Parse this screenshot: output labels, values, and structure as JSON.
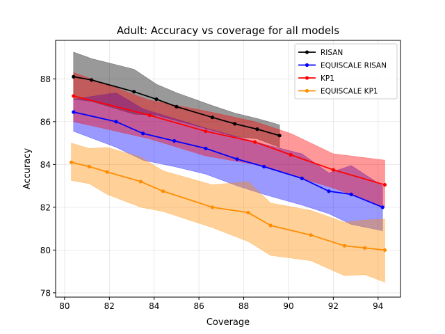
{
  "chart_data": {
    "type": "line",
    "title": "Adult: Accuracy vs coverage for all models",
    "xlabel": "Coverage",
    "ylabel": "Accuracy",
    "xlim": [
      79.6,
      95.0
    ],
    "ylim": [
      77.8,
      89.8
    ],
    "xticks": [
      80,
      82,
      84,
      86,
      88,
      90,
      92,
      94
    ],
    "yticks": [
      78,
      80,
      82,
      84,
      86,
      88
    ],
    "grid": true,
    "legend_position": "top-right",
    "series": [
      {
        "name": "RISAN",
        "color": "#000000",
        "x": [
          80.4,
          81.2,
          83.1,
          84.1,
          85.0,
          86.6,
          87.6,
          88.6,
          89.6
        ],
        "y": [
          88.1,
          87.95,
          87.4,
          87.05,
          86.7,
          86.2,
          85.9,
          85.65,
          85.35
        ],
        "band_upper": [
          89.25,
          88.95,
          88.45,
          87.75,
          87.35,
          86.75,
          86.4,
          86.15,
          85.85
        ],
        "band_lower": [
          87.05,
          86.95,
          86.35,
          86.3,
          86.05,
          85.6,
          85.3,
          85.2,
          84.8
        ]
      },
      {
        "name": "EQUISCALE RISAN",
        "color": "#0000ff",
        "x": [
          80.4,
          82.3,
          83.5,
          84.9,
          86.3,
          87.7,
          88.9,
          90.6,
          91.8,
          92.8,
          94.2
        ],
        "y": [
          86.45,
          86.0,
          85.45,
          85.1,
          84.75,
          84.25,
          83.9,
          83.35,
          82.75,
          82.6,
          82.0
        ],
        "band_upper": [
          87.05,
          87.35,
          86.6,
          86.15,
          85.7,
          85.3,
          84.95,
          84.5,
          83.6,
          83.95,
          83.0
        ],
        "band_lower": [
          85.55,
          84.8,
          84.2,
          83.9,
          83.55,
          83.0,
          82.6,
          82.1,
          81.7,
          81.2,
          80.9
        ]
      },
      {
        "name": "KP1",
        "color": "#ff0000",
        "x": [
          80.4,
          83.8,
          86.3,
          88.5,
          90.1,
          92.0,
          94.3
        ],
        "y": [
          87.2,
          86.3,
          85.55,
          85.05,
          84.45,
          83.75,
          83.05
        ],
        "band_upper": [
          88.3,
          87.0,
          86.5,
          86.0,
          85.45,
          84.5,
          84.2
        ],
        "band_lower": [
          86.0,
          85.2,
          84.4,
          84.0,
          83.5,
          82.9,
          82.0
        ]
      },
      {
        "name": "EQUISCALE KP1",
        "color": "#ff8c00",
        "x": [
          80.3,
          81.1,
          81.9,
          83.4,
          84.4,
          86.6,
          88.2,
          89.2,
          91.0,
          92.5,
          93.4,
          94.3
        ],
        "y": [
          84.1,
          83.9,
          83.65,
          83.2,
          82.75,
          82.0,
          81.75,
          81.15,
          80.7,
          80.2,
          80.1,
          80.0
        ],
        "band_upper": [
          85.0,
          84.75,
          84.8,
          84.35,
          83.7,
          83.05,
          83.2,
          82.2,
          81.85,
          81.3,
          81.4,
          81.45
        ],
        "band_lower": [
          83.25,
          83.1,
          82.6,
          82.0,
          81.8,
          81.05,
          80.4,
          79.75,
          79.5,
          78.8,
          78.85,
          78.5
        ]
      }
    ]
  }
}
